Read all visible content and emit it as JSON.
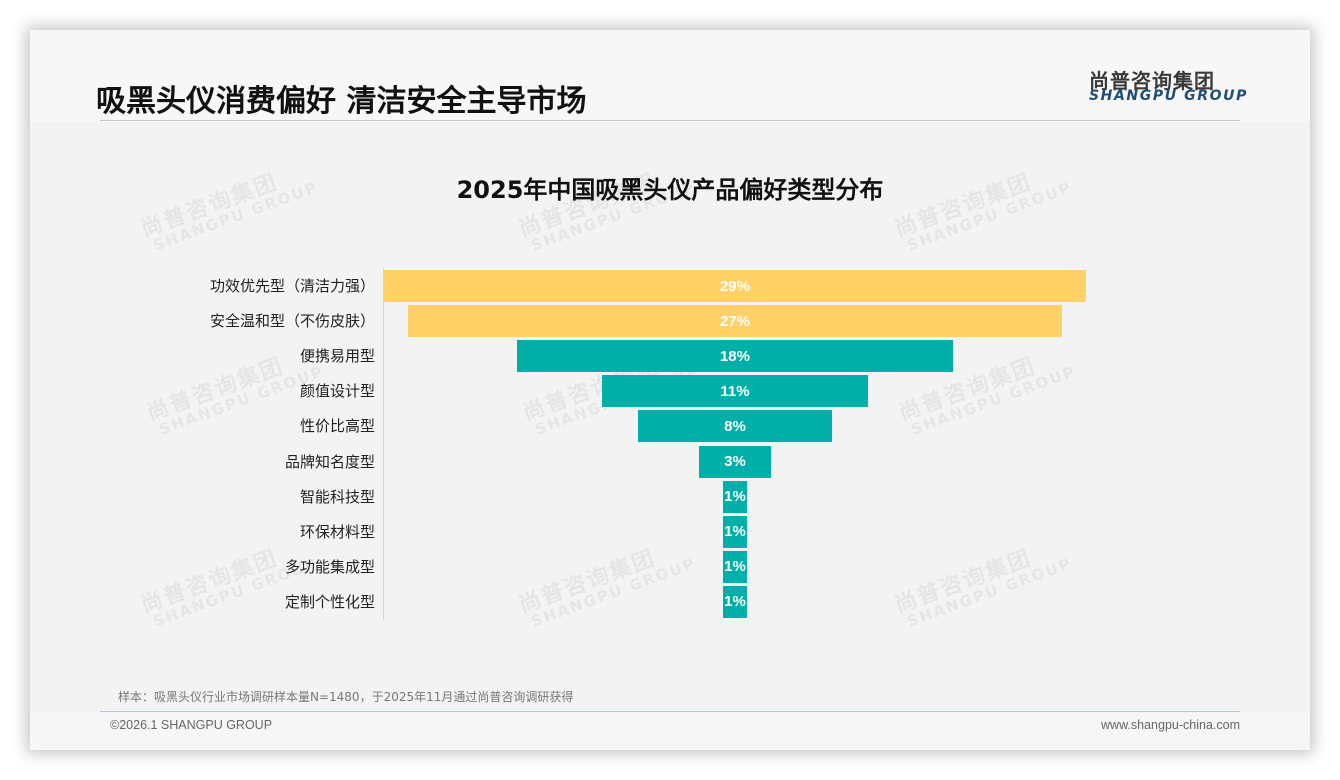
{
  "header": {
    "title": "吸黑头仪消费偏好 清洁安全主导市场",
    "logo_cn": "尚普咨询集团",
    "logo_en": "SHANGPU GROUP"
  },
  "watermark": {
    "cn": "尚普咨询集团",
    "en": "SHANGPU GROUP"
  },
  "chart_data": {
    "type": "bar",
    "orientation": "horizontal-funnel",
    "title": "2025年中国吸黑头仪产品偏好类型分布",
    "xlabel": "",
    "ylabel": "",
    "grid": false,
    "legend": null,
    "unit": "%",
    "categories": [
      "功效优先型（清洁力强）",
      "安全温和型（不伤皮肤）",
      "便携易用型",
      "颜值设计型",
      "性价比高型",
      "品牌知名度型",
      "智能科技型",
      "环保材料型",
      "多功能集成型",
      "定制个性化型"
    ],
    "values": [
      29,
      27,
      18,
      11,
      8,
      3,
      1,
      1,
      1,
      1
    ],
    "labels": [
      "29%",
      "27%",
      "18%",
      "11%",
      "8%",
      "3%",
      "1%",
      "1%",
      "1%",
      "1%"
    ],
    "colors": [
      "#ffd166",
      "#ffd166",
      "#00b0a8",
      "#00b0a8",
      "#00b0a8",
      "#00b0a8",
      "#00b0a8",
      "#00b0a8",
      "#00b0a8",
      "#00b0a8"
    ]
  },
  "footer": {
    "sample_note": "样本：吸黑头仪行业市场调研样本量N=1480，于2025年11月通过尚普咨询调研获得",
    "copyright": "©2026.1 SHANGPU GROUP",
    "website": "www.shangpu-china.com"
  }
}
